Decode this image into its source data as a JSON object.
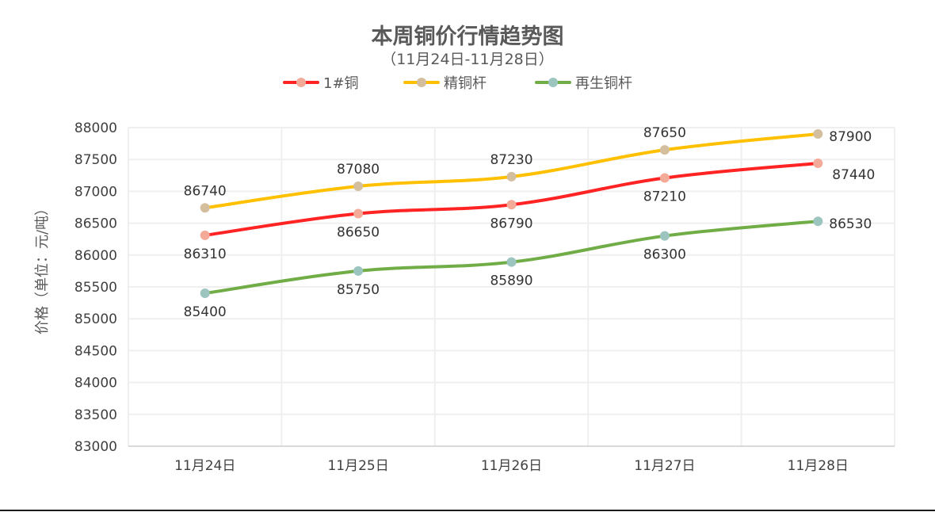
{
  "chart": {
    "title": "本周铜价行情趋势图",
    "subtitle": "（11月24日-11月28日）",
    "y_axis_title": "价格（单位：元/吨）"
  },
  "legend": {
    "items": [
      {
        "label": "1#铜",
        "line_color": "#FF2323",
        "marker_color": "#F4AA98"
      },
      {
        "label": "精铜杆",
        "line_color": "#FFC000",
        "marker_color": "#D3BE9D"
      },
      {
        "label": "再生铜杆",
        "line_color": "#70AD47",
        "marker_color": "#9CC5C0"
      }
    ]
  },
  "colors": {
    "grid": "#EFEFEF",
    "axis": "#D9D9D9",
    "tick_text": "#404040",
    "data_label_text": "#333333"
  },
  "chart_data": {
    "type": "line",
    "title": "本周铜价行情趋势图",
    "subtitle": "（11月24日-11月28日）",
    "xlabel": "",
    "ylabel": "价格（单位：元/吨）",
    "categories": [
      "11月24日",
      "11月25日",
      "11月26日",
      "11月27日",
      "11月28日"
    ],
    "series": [
      {
        "name": "1#铜",
        "values": [
          86310,
          86650,
          86790,
          87210,
          87440
        ],
        "label_pos": [
          "below",
          "below",
          "below",
          "below",
          "right-below"
        ]
      },
      {
        "name": "精铜杆",
        "values": [
          86740,
          87080,
          87230,
          87650,
          87900
        ],
        "label_pos": [
          "above",
          "above",
          "above",
          "above",
          "right"
        ]
      },
      {
        "name": "再生铜杆",
        "values": [
          85400,
          85750,
          85890,
          86300,
          86530
        ],
        "label_pos": [
          "below",
          "below",
          "below",
          "below",
          "right"
        ]
      }
    ],
    "ylim": [
      83000,
      88000
    ],
    "y_ticks": [
      88000,
      87500,
      87000,
      86500,
      86000,
      85500,
      85000,
      84500,
      84000,
      83500,
      83000
    ],
    "grid": true,
    "smooth": true,
    "legend_position": "top",
    "data_labels": true
  }
}
